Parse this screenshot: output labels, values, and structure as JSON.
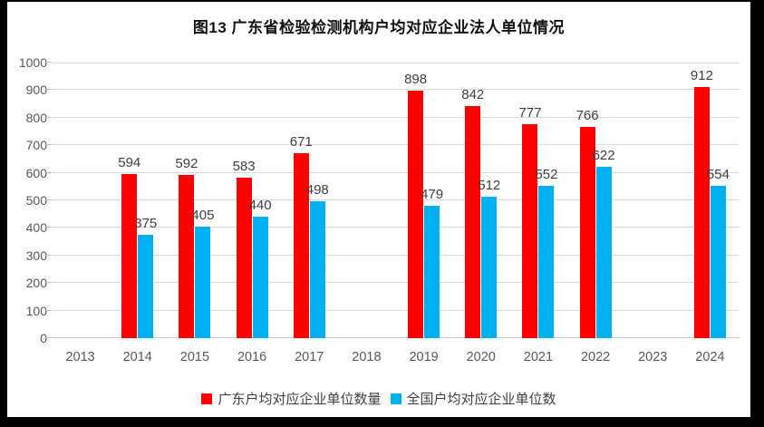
{
  "title": "图13 广东省检验检测机构户均对应企业法人单位情况",
  "chart_data": {
    "type": "bar",
    "title": "图13 广东省检验检测机构户均对应企业法人单位情况",
    "categories": [
      "2013",
      "2014",
      "2015",
      "2016",
      "2017",
      "2018",
      "2019",
      "2020",
      "2021",
      "2022",
      "2023",
      "2024"
    ],
    "series": [
      {
        "key": "guangdong",
        "name": "广东户均对应企业单位数量",
        "color": "#ff0000",
        "values": [
          null,
          594,
          592,
          583,
          671,
          null,
          898,
          842,
          777,
          766,
          null,
          912
        ]
      },
      {
        "key": "national",
        "name": "全国户均对应企业单位数",
        "color": "#00b0f0",
        "values": [
          null,
          375,
          405,
          440,
          498,
          null,
          479,
          512,
          552,
          622,
          null,
          554
        ]
      }
    ],
    "ylim": [
      0,
      1000
    ],
    "yticks": [
      0,
      100,
      200,
      300,
      400,
      500,
      600,
      700,
      800,
      900,
      1000
    ],
    "grid": true,
    "legend_position": "bottom",
    "xlabel": "",
    "ylabel": ""
  },
  "colors": {
    "frame_border": "#000000",
    "background": "#ffffff",
    "gridline": "#d9d9d9",
    "axis_text": "#595959",
    "data_label_text": "#3f3f3f"
  }
}
